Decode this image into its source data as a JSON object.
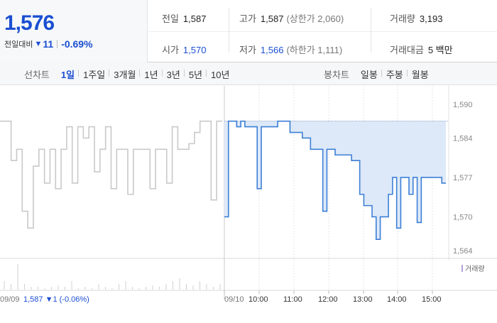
{
  "price": {
    "current": "1,576",
    "change_label": "전일대비",
    "change_arrow": "▼",
    "change_value": "11",
    "change_pct": "-0.69%"
  },
  "stats": {
    "prev_close": {
      "label": "전일",
      "value": "1,587"
    },
    "high": {
      "label": "고가",
      "value": "1,587",
      "sub": "(상한가 2,060)"
    },
    "volume": {
      "label": "거래량",
      "value": "3,193"
    },
    "open": {
      "label": "시가",
      "value": "1,570"
    },
    "low": {
      "label": "저가",
      "value": "1,566",
      "sub": "(하한가 1,111)"
    },
    "amount": {
      "label": "거래대금",
      "value": "5 백만"
    }
  },
  "tabs": {
    "line_label": "선차트",
    "line_items": [
      "1일",
      "1주일",
      "3개월",
      "1년",
      "3년",
      "5년",
      "10년"
    ],
    "line_active": 0,
    "candle_label": "봉차트",
    "candle_items": [
      "일봉",
      "주봉",
      "월봉"
    ]
  },
  "colors": {
    "accent": "#1a4fd1",
    "price_line": "#3d7fd6",
    "prev_line": "#c9c9c9",
    "fill": "#dde9f8"
  },
  "chart_data": {
    "type": "line",
    "y_axis_ticks": [
      "1,590",
      "1,584",
      "1,577",
      "1,570",
      "1,564"
    ],
    "y_tick_values": [
      1590,
      1584,
      1577,
      1570,
      1564
    ],
    "ylim": [
      1563,
      1592
    ],
    "x_axis_ticks": [
      "09/10",
      "10:00",
      "11:00",
      "12:00",
      "13:00",
      "14:00",
      "15:00"
    ],
    "prev_day_label": "09/09",
    "prev_day_summary": {
      "value": "1,587",
      "arrow": "▼",
      "change": "1",
      "pct": "(-0.06%)"
    },
    "volume_legend": "거래량",
    "series": [
      {
        "values": [
          1570,
          1587,
          1587,
          1586,
          1587,
          1586,
          1586,
          1586,
          1575,
          1586,
          1586,
          1586,
          1586,
          1587,
          1587,
          1587,
          1585,
          1585,
          1585,
          1584,
          1584,
          1582,
          1582,
          1582,
          1571,
          1582,
          1582,
          1581,
          1581,
          1581,
          1581,
          1580,
          1580,
          1574,
          1572,
          1572,
          1570,
          1566,
          1570,
          1570,
          1574,
          1577,
          1568,
          1577,
          1577,
          1574,
          1577,
          1569,
          1577,
          1577,
          1577,
          1577,
          1577,
          1576,
          1576
        ]
      },
      {
        "values": [
          1587,
          1587,
          1580,
          1582,
          1571,
          1568,
          1579,
          1582,
          1576,
          1582,
          1575,
          1582,
          1586,
          1576,
          1586,
          1584,
          1586,
          1578,
          1582,
          1586,
          1575,
          1582,
          1582,
          1574,
          1582,
          1582,
          1582,
          1575,
          1582,
          1582,
          1576,
          1586,
          1582,
          1582,
          1583,
          1585,
          1587,
          1587,
          1573,
          1587,
          1587
        ]
      }
    ],
    "volume_bars": [
      0.3,
      0.2,
      0.9,
      0.2,
      0.1,
      0.1,
      0.05,
      0.1,
      0.15,
      0.1,
      0.3,
      0.05,
      0.1,
      0.05,
      0.2,
      0.1,
      0.05,
      0.2,
      0.3,
      0.1,
      0.05,
      0.1,
      0.15,
      0.1,
      0.2,
      0.3,
      0.4,
      0.2,
      0.15,
      0.3,
      0.2,
      0.1,
      0.2
    ]
  }
}
